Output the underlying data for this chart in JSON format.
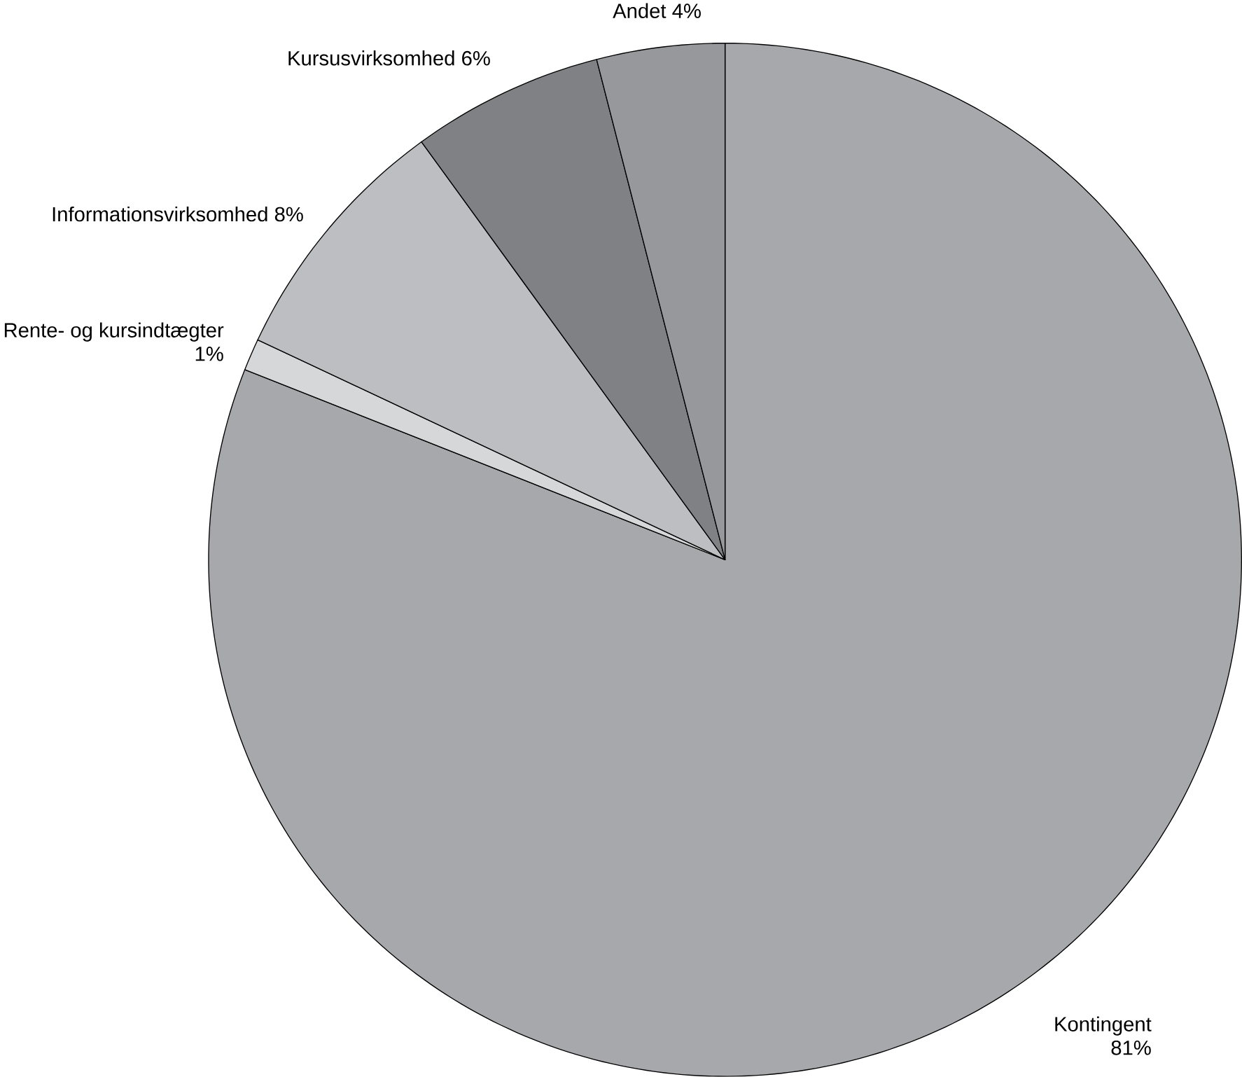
{
  "chart_data": {
    "type": "pie",
    "categories": [
      "Kontingent",
      "Rente- og kursindtægter",
      "Informationsvirksomhed",
      "Kursusvirksomhed",
      "Andet"
    ],
    "values": [
      81,
      1,
      8,
      6,
      4
    ],
    "value_labels": [
      "81%",
      "1%",
      "8%",
      "6%",
      "4%"
    ],
    "colors": [
      "#a7a8ab",
      "#d6d7d9",
      "#bdbec1",
      "#808184",
      "#97989b"
    ]
  }
}
